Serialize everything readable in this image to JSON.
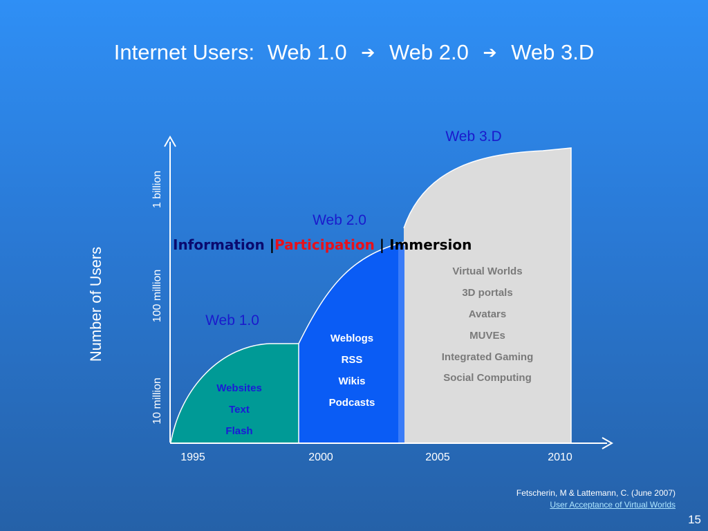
{
  "title": {
    "prefix": "Internet Users:",
    "stage1": "Web 1.0",
    "stage2": "Web 2.0",
    "stage3": "Web 3.D",
    "arrow_glyph": "➔"
  },
  "y_axis": {
    "label": "Number of Users",
    "ticks": [
      "10 million",
      "100 million",
      "1 billion"
    ]
  },
  "x_axis": {
    "ticks": [
      "1995",
      "2000",
      "2005",
      "2010"
    ]
  },
  "stages": [
    {
      "name": "Web 1.0",
      "color": "#009a96",
      "text_color": "#1b1bd6",
      "items": [
        "Websites",
        "Text",
        "Flash"
      ]
    },
    {
      "name": "Web 2.0",
      "color": "#0a5cf5",
      "text_color": "#ffffff",
      "items": [
        "Weblogs",
        "RSS",
        "Wikis",
        "Podcasts"
      ]
    },
    {
      "name": "Web 3.D",
      "color": "#dcdcdc",
      "text_color": "#7a7a7a",
      "items": [
        "Virtual Worlds",
        "3D portals",
        "Avatars",
        "MUVEs",
        "Integrated Gaming",
        "Social Computing"
      ]
    }
  ],
  "themes": {
    "information": "Information",
    "participation": "Participation",
    "immersion": "Immersion",
    "separator": "|"
  },
  "citation": {
    "text": "Fetscherin, M & Lattemann, C.  (June 2007)",
    "link_text": "User Acceptance of Virtual Worlds"
  },
  "page_number": "15",
  "colors": {
    "stage_label": "#1a1acc",
    "participation": "#e8101a"
  }
}
